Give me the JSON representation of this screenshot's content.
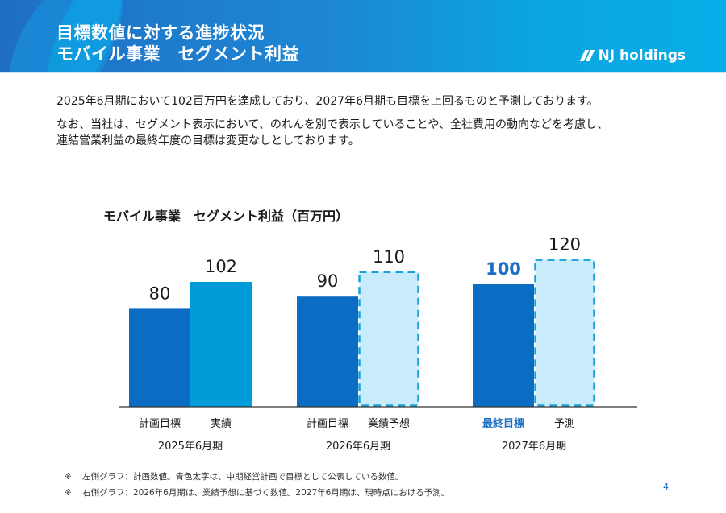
{
  "header": {
    "title_line1": "目標数値に対する進捗状況",
    "title_line2": "モバイル事業　セグメント利益",
    "logo_text": "NJ holdings",
    "logo_icon": "double-slash-logo-icon"
  },
  "body": {
    "line1": "2025年6月期において102百万円を達成しており、2027年6月期も目標を上回るものと予測しております。",
    "line2": "なお、当社は、セグメント表示において、のれんを別で表示していることや、全社費用の動向などを考慮し、",
    "line3": "連結営業利益の最終年度の目標は変更なしとしております。"
  },
  "chart_data": {
    "type": "bar",
    "title": "モバイル事業　セグメント利益（百万円）",
    "xlabel": "",
    "ylabel": "",
    "unit": "百万円",
    "ylim": [
      0,
      130
    ],
    "grid": false,
    "groups": [
      {
        "period": "2025年6月期",
        "bars": [
          {
            "label": "計画目標",
            "value": 80,
            "style": "plan",
            "highlight": false
          },
          {
            "label": "実績",
            "value": 102,
            "style": "actual",
            "highlight": false
          }
        ]
      },
      {
        "period": "2026年6月期",
        "bars": [
          {
            "label": "計画目標",
            "value": 90,
            "style": "plan",
            "highlight": false
          },
          {
            "label": "業績予想",
            "value": 110,
            "style": "forecast",
            "highlight": false
          }
        ]
      },
      {
        "period": "2027年6月期",
        "bars": [
          {
            "label": "最終目標",
            "value": 100,
            "style": "plan",
            "highlight": true
          },
          {
            "label": "予測",
            "value": 120,
            "style": "forecast",
            "highlight": false
          }
        ]
      }
    ],
    "colors": {
      "plan": "#0a6cc2",
      "actual": "#009cd9",
      "forecast_fill": "#c8ecfb",
      "forecast_border": "#1ba1d9",
      "highlight_text": "#1f6fc4",
      "axis": "#333333"
    }
  },
  "notes": [
    {
      "mark": "※",
      "text": "左側グラフ：計画数値。青色太字は、中期経営計画で目標として公表している数値。"
    },
    {
      "mark": "※",
      "text": "右側グラフ：2026年6月期は、業績予想に基づく数値。2027年6月期は、現時点における予測。"
    }
  ],
  "page_number": "4"
}
